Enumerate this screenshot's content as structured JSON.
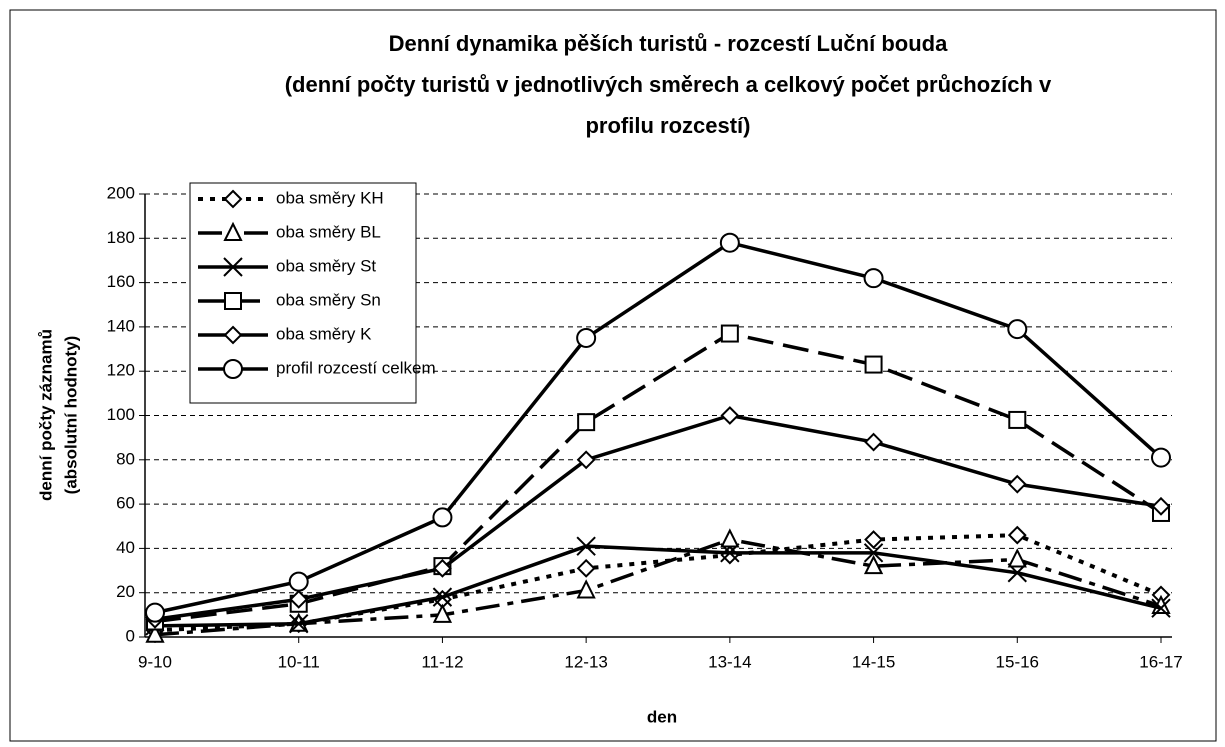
{
  "chart_data": {
    "type": "line",
    "title": [
      "Denní dynamika pěších turistů - rozcestí Luční bouda",
      "(denní počty turistů v jednotlivých směrech a celkový počet průchozích v",
      "profilu rozcestí)"
    ],
    "x_label": "den",
    "y_label": [
      "denní počty záznamů",
      "(absolutní hodnoty)"
    ],
    "categories": [
      "9-10",
      "10-11",
      "11-12",
      "12-13",
      "13-14",
      "14-15",
      "15-16",
      "16-17"
    ],
    "ylim": [
      0,
      200
    ],
    "yticks": [
      0,
      20,
      40,
      60,
      80,
      100,
      120,
      140,
      160,
      180,
      200
    ],
    "grid": true,
    "legend": "upper left",
    "series": [
      {
        "name": "oba směry KH",
        "color": "#000000",
        "dash": "dotted",
        "marker": "diamond",
        "values": [
          3,
          6,
          17,
          31,
          37,
          44,
          46,
          19
        ]
      },
      {
        "name": "oba směry BL",
        "color": "#000000",
        "dash": "dashdot",
        "marker": "triangle",
        "values": [
          1,
          6,
          10,
          21,
          44,
          32,
          35,
          14
        ]
      },
      {
        "name": "oba směry St",
        "color": "#000000",
        "dash": "solid",
        "marker": "x",
        "values": [
          5,
          6,
          18,
          41,
          38,
          38,
          29,
          13
        ]
      },
      {
        "name": "oba směry Sn",
        "color": "#000000",
        "dash": "dashed",
        "marker": "square",
        "values": [
          7,
          15,
          32,
          97,
          137,
          123,
          98,
          56
        ]
      },
      {
        "name": "oba směry K",
        "color": "#000000",
        "dash": "solid",
        "marker": "diamond",
        "values": [
          8,
          17,
          31,
          80,
          100,
          88,
          69,
          59
        ]
      },
      {
        "name": "profil rozcestí celkem",
        "color": "#000000",
        "dash": "solid",
        "marker": "circle",
        "values": [
          11,
          25,
          54,
          135,
          178,
          162,
          139,
          81
        ]
      }
    ]
  }
}
